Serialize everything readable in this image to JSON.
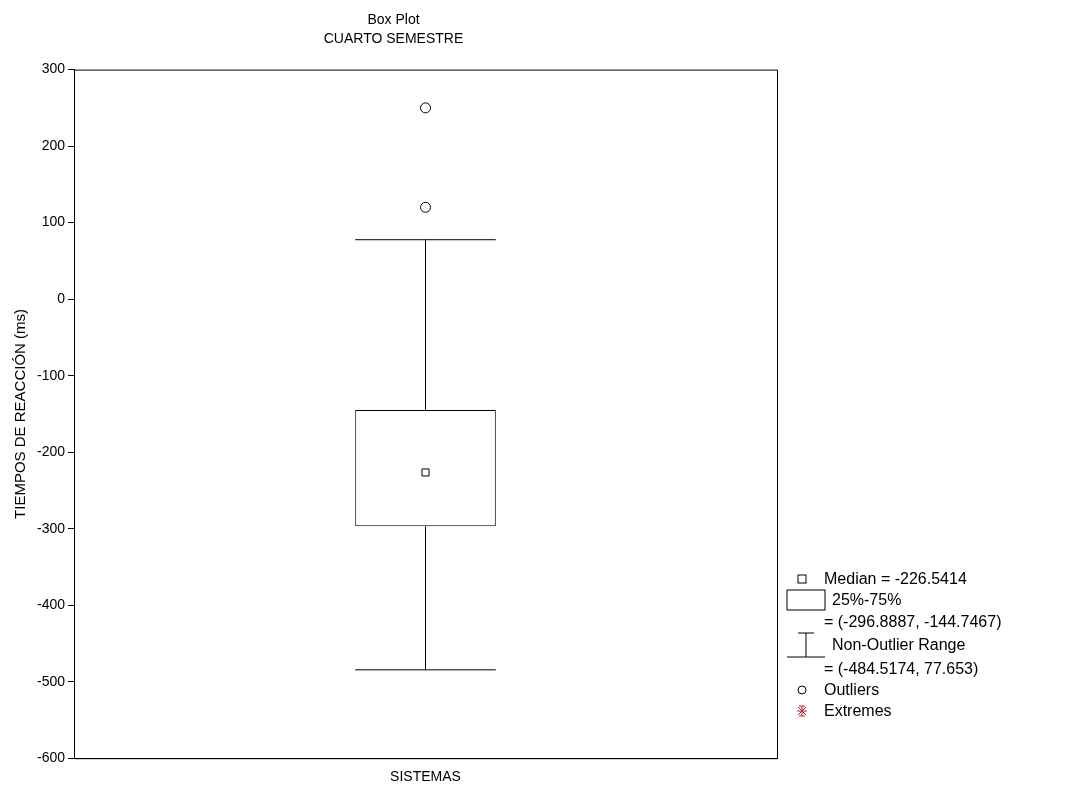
{
  "chart_data": {
    "type": "box",
    "title": "Box Plot",
    "subtitle": "CUARTO SEMESTRE",
    "ylabel": "TIEMPOS DE REACCIÓN (ms)",
    "categories": [
      "SISTEMAS"
    ],
    "color": "#000000",
    "boxes": [
      {
        "low": -484.5174,
        "q1": -296.8887,
        "median": -226.5414,
        "q3": -144.7467,
        "high": 77.653,
        "outliers": [
          250,
          120
        ]
      }
    ],
    "ylim": [
      -600,
      300
    ],
    "yticks": [
      -600,
      -500,
      -400,
      -300,
      -200,
      -100,
      0,
      100,
      200,
      300
    ],
    "grid": false,
    "annotations": [
      "Median = -226.5414",
      "25%-75%",
      "= (-296.8887, -144.7467)",
      "Non-Outlier Range",
      "= (-484.5174, 77.653)",
      "Outliers",
      "Extremes"
    ]
  }
}
